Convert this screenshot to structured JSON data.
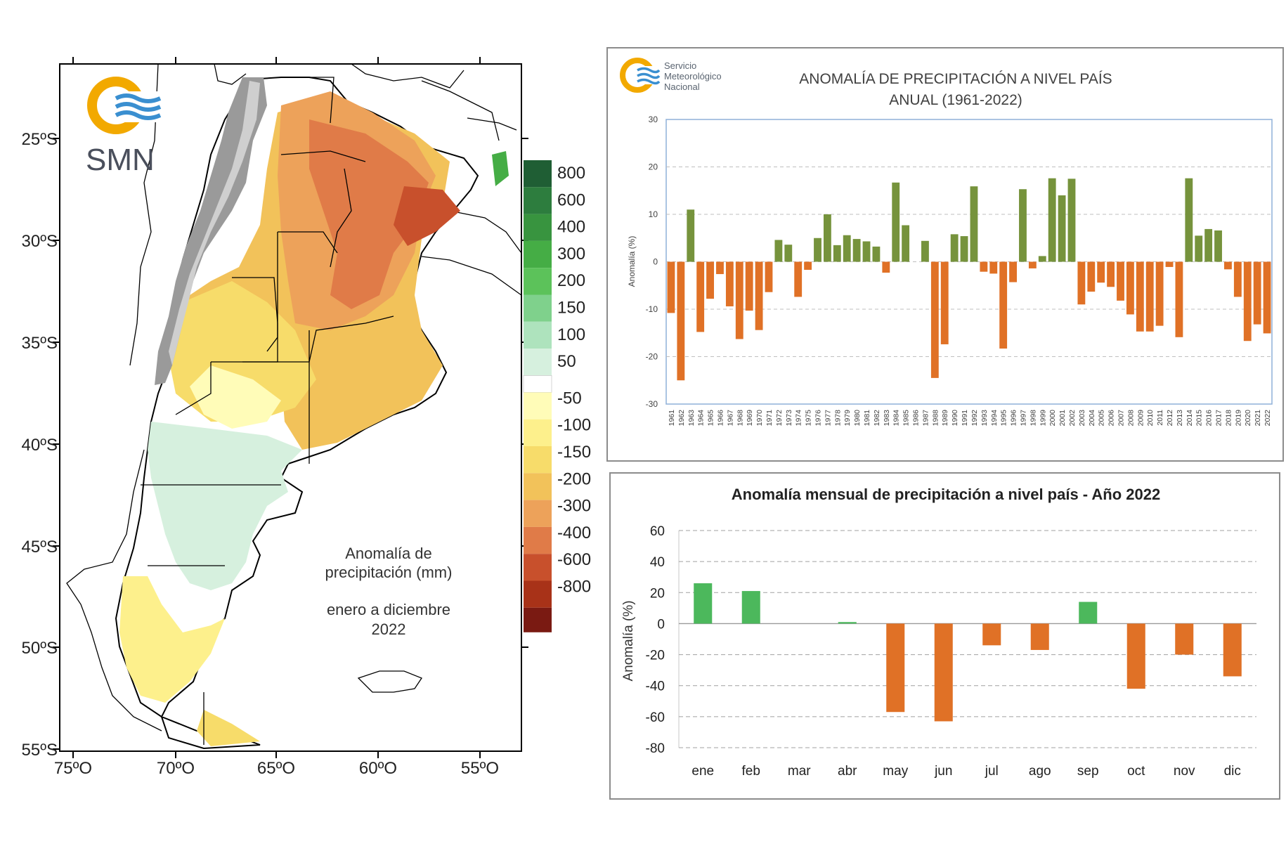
{
  "map": {
    "logo_text": "SMN",
    "lat_labels": [
      "25ºS",
      "30ºS",
      "35ºS",
      "40ºS",
      "45ºS",
      "50ºS",
      "55ºS"
    ],
    "lon_labels": [
      "75ºO",
      "70ºO",
      "65ºO",
      "60ºO",
      "55ºO"
    ],
    "title_line1": "Anomalía de",
    "title_line2": "precipitación (mm)",
    "period_line1": "enero a diciembre",
    "period_line2": "2022",
    "legend": {
      "positive": [
        {
          "label": "800",
          "color": "#1f5e34"
        },
        {
          "label": "600",
          "color": "#2d7d3e"
        },
        {
          "label": "400",
          "color": "#38943f"
        },
        {
          "label": "300",
          "color": "#45ad45"
        },
        {
          "label": "200",
          "color": "#5cc25a"
        },
        {
          "label": "150",
          "color": "#7fd18c"
        },
        {
          "label": "100",
          "color": "#aee3bd"
        },
        {
          "label": "50",
          "color": "#d6f0de"
        }
      ],
      "negative": [
        {
          "label": "-50",
          "color": "#fffcb8"
        },
        {
          "label": "-100",
          "color": "#fdf08c"
        },
        {
          "label": "-150",
          "color": "#f7dc6a"
        },
        {
          "label": "-200",
          "color": "#f2c25a"
        },
        {
          "label": "-300",
          "color": "#eda25a"
        },
        {
          "label": "-400",
          "color": "#e07b48"
        },
        {
          "label": "-600",
          "color": "#c8502c"
        },
        {
          "label": "-800",
          "color": "#a83218"
        }
      ],
      "bottom_color": "#7a1a12"
    }
  },
  "annual_chart": {
    "org_line1": "Servicio",
    "org_line2": "Meteorológico",
    "org_line3": "Nacional",
    "title_line1": "ANOMALÍA DE PRECIPITACIÓN A NIVEL PAÍS",
    "title_line2": "ANUAL (1961-2022)",
    "ylabel": "Anomalía (%)"
  },
  "monthly_chart": {
    "title": "Anomalía mensual de precipitación a nivel país - Año 2022",
    "ylabel": "Anomalía (%)"
  },
  "colors": {
    "positive": "#76933c",
    "negative": "#e07126",
    "positive_monthly": "#4cb85c",
    "negative_monthly": "#e07126"
  },
  "chart_data": [
    {
      "type": "bar",
      "title": "ANOMALÍA DE PRECIPITACIÓN A NIVEL PAÍS ANUAL (1961-2022)",
      "xlabel": "",
      "ylabel": "Anomalía (%)",
      "ylim": [
        -30,
        30
      ],
      "yticks": [
        30,
        20,
        10,
        0,
        -10,
        -20,
        -30
      ],
      "grid": true,
      "categories": [
        "1961",
        "1962",
        "1963",
        "1964",
        "1965",
        "1966",
        "1967",
        "1968",
        "1969",
        "1970",
        "1971",
        "1972",
        "1973",
        "1974",
        "1975",
        "1976",
        "1977",
        "1978",
        "1979",
        "1980",
        "1981",
        "1982",
        "1983",
        "1984",
        "1985",
        "1986",
        "1987",
        "1988",
        "1989",
        "1990",
        "1991",
        "1992",
        "1993",
        "1994",
        "1995",
        "1996",
        "1997",
        "1998",
        "1999",
        "2000",
        "2001",
        "2002",
        "2003",
        "2004",
        "2005",
        "2006",
        "2007",
        "2008",
        "2009",
        "2010",
        "2011",
        "2012",
        "2013",
        "2014",
        "2015",
        "2016",
        "2017",
        "2018",
        "2019",
        "2020",
        "2021",
        "2022"
      ],
      "values": [
        -10.8,
        -25,
        11,
        -14.8,
        -7.8,
        -2.6,
        -9.4,
        -16.3,
        -10.3,
        -14.4,
        -6.4,
        4.6,
        3.6,
        -7.4,
        -1.7,
        5,
        10,
        3.5,
        5.6,
        4.8,
        4.3,
        3.2,
        -2.3,
        16.7,
        7.7,
        0,
        4.4,
        -24.5,
        -17.4,
        5.8,
        5.4,
        15.9,
        -2.1,
        -2.5,
        -18.3,
        -4.3,
        15.3,
        -1.4,
        1.2,
        17.6,
        14,
        17.5,
        -9,
        -6.3,
        -4.4,
        -5.3,
        -8.2,
        -11.1,
        -14.7,
        -14.7,
        -13.5,
        -1.1,
        -15.9,
        17.6,
        5.5,
        6.9,
        6.6,
        -1.6,
        -7.4,
        -16.7,
        -13.2,
        -15.1
      ]
    },
    {
      "type": "bar",
      "title": "Anomalía mensual de precipitación a nivel país - Año 2022",
      "xlabel": "",
      "ylabel": "Anomalía (%)",
      "ylim": [
        -80,
        60
      ],
      "yticks": [
        60,
        40,
        20,
        0,
        -20,
        -40,
        -60,
        -80
      ],
      "grid": true,
      "categories": [
        "ene",
        "feb",
        "mar",
        "abr",
        "may",
        "jun",
        "jul",
        "ago",
        "sep",
        "oct",
        "nov",
        "dic"
      ],
      "values": [
        26,
        21,
        0,
        1,
        -57,
        -63,
        -14,
        -17,
        14,
        -42,
        -20,
        -34
      ]
    }
  ]
}
